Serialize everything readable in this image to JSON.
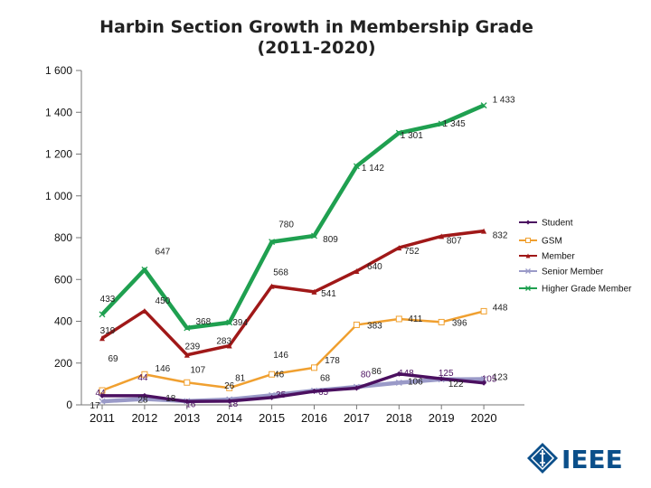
{
  "chart_data": {
    "type": "line",
    "title": "Harbin Section Growth in Membership Grade",
    "subtitle": "(2011-2020)",
    "xlabel": "",
    "ylabel": "",
    "ylim": [
      0,
      1600
    ],
    "y_ticks": [
      0,
      200,
      400,
      600,
      800,
      1000,
      1200,
      1400,
      1600
    ],
    "y_tick_labels": [
      "0",
      "200",
      "400",
      "600",
      "800",
      "1 000",
      "1 200",
      "1 400",
      "1 600"
    ],
    "x": [
      "2011",
      "2012",
      "2013",
      "2014",
      "2015",
      "2016",
      "2017",
      "2018",
      "2019",
      "2020"
    ],
    "grid": false,
    "legend_position": "right",
    "series": [
      {
        "name": "Student",
        "color": "#4b1060",
        "marker": "diamond",
        "values": [
          44,
          44,
          16,
          18,
          35,
          65,
          80,
          148,
          125,
          105
        ],
        "labels": [
          "44",
          "44",
          "16",
          "18",
          "35",
          "65",
          "80",
          "148",
          "125",
          "105"
        ]
      },
      {
        "name": "GSM",
        "color": "#f0a030",
        "marker": "square",
        "values": [
          69,
          146,
          107,
          81,
          146,
          178,
          383,
          411,
          396,
          448
        ],
        "labels": [
          "69",
          "146",
          "107",
          "81",
          "146",
          "178",
          "383",
          "411",
          "396",
          "448"
        ]
      },
      {
        "name": "Member",
        "color": "#a01818",
        "marker": "triangle",
        "values": [
          319,
          450,
          239,
          283,
          568,
          541,
          640,
          752,
          807,
          832
        ],
        "labels": [
          "319",
          "450",
          "239",
          "283",
          "568",
          "541",
          "640",
          "752",
          "807",
          "832"
        ]
      },
      {
        "name": "Senior Member",
        "color": "#9a9ac8",
        "marker": "x",
        "values": [
          17,
          28,
          18,
          26,
          46,
          68,
          86,
          106,
          122,
          123
        ],
        "labels": [
          "17",
          "28",
          "18",
          "26",
          "46",
          "68",
          "86",
          "106",
          "122",
          "123"
        ]
      },
      {
        "name": "Higher Grade Member",
        "color": "#1fa050",
        "marker": "x",
        "values": [
          433,
          647,
          368,
          394,
          780,
          809,
          1142,
          1301,
          1345,
          1433
        ],
        "labels": [
          "433",
          "647",
          "368",
          "394",
          "780",
          "809",
          "1 142",
          "1 301",
          "1 345",
          "1 433"
        ]
      }
    ]
  },
  "logo": {
    "text": "IEEE",
    "color": "#0b4f8a"
  }
}
